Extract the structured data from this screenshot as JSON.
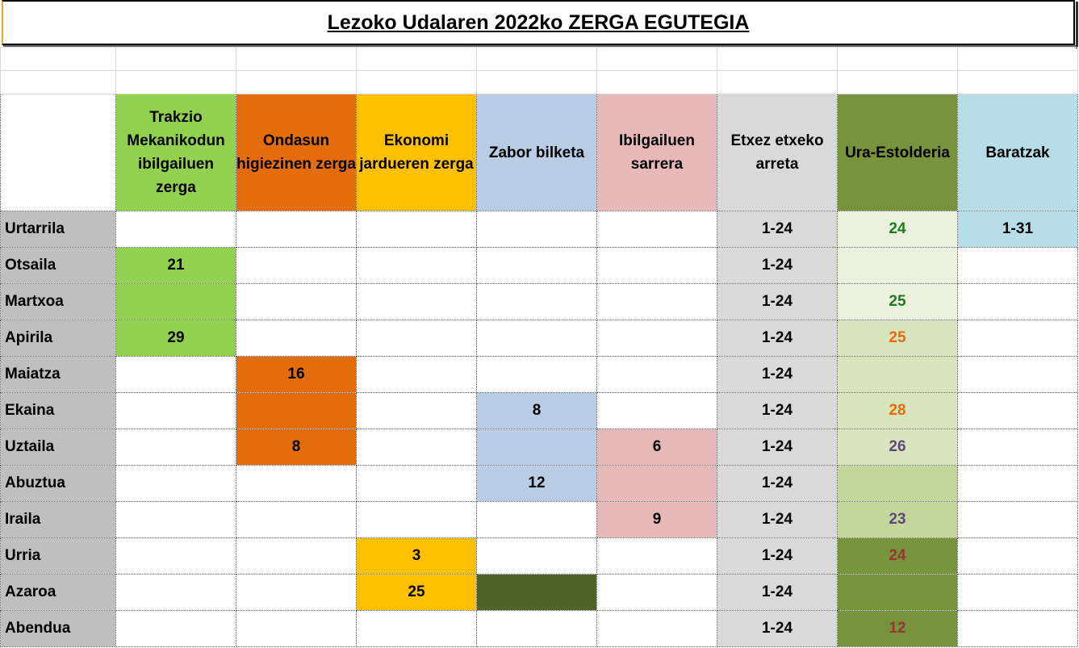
{
  "title": "Lezoko Udalaren 2022ko  ZERGA EGUTEGIA",
  "headers": [
    {
      "label": "Trakzio Mekanikodun ibilgailuen zerga",
      "bg": "#92d050"
    },
    {
      "label": "Ondasun higiezinen zerga",
      "bg": "#e46c0a"
    },
    {
      "label": "Ekonomi jardueren zerga",
      "bg": "#ffc000"
    },
    {
      "label": "Zabor bilketa",
      "bg": "#b8cce4"
    },
    {
      "label": "Ibilgailuen sarrera",
      "bg": "#e6b9b8"
    },
    {
      "label": "Etxez etxeko arreta",
      "bg": "#d9d9d9"
    },
    {
      "label": "Ura-Estolderia",
      "bg": "#77933c"
    },
    {
      "label": "Baratzak",
      "bg": "#b7dee8"
    }
  ],
  "rows": [
    {
      "month": "Urtarrila",
      "cells": [
        {
          "v": "",
          "bg": "#ffffff"
        },
        {
          "v": "",
          "bg": "#ffffff"
        },
        {
          "v": "",
          "bg": "#ffffff"
        },
        {
          "v": "",
          "bg": "#ffffff"
        },
        {
          "v": "",
          "bg": "#ffffff"
        },
        {
          "v": "1-24",
          "bg": "#d9d9d9"
        },
        {
          "v": "24",
          "bg": "#ebf1de",
          "color": "#1e7a1e"
        },
        {
          "v": "1-31",
          "bg": "#b7dee8"
        }
      ]
    },
    {
      "month": "Otsaila",
      "cells": [
        {
          "v": "21",
          "bg": "#92d050"
        },
        {
          "v": "",
          "bg": "#ffffff"
        },
        {
          "v": "",
          "bg": "#ffffff"
        },
        {
          "v": "",
          "bg": "#ffffff"
        },
        {
          "v": "",
          "bg": "#ffffff"
        },
        {
          "v": "1-24",
          "bg": "#d9d9d9"
        },
        {
          "v": "",
          "bg": "#ebf1de"
        },
        {
          "v": "",
          "bg": "#ffffff"
        }
      ]
    },
    {
      "month": "Martxoa",
      "cells": [
        {
          "v": "",
          "bg": "#92d050"
        },
        {
          "v": "",
          "bg": "#ffffff"
        },
        {
          "v": "",
          "bg": "#ffffff"
        },
        {
          "v": "",
          "bg": "#ffffff"
        },
        {
          "v": "",
          "bg": "#ffffff"
        },
        {
          "v": "1-24",
          "bg": "#d9d9d9"
        },
        {
          "v": "25",
          "bg": "#ebf1de",
          "color": "#1e7a1e"
        },
        {
          "v": "",
          "bg": "#ffffff"
        }
      ]
    },
    {
      "month": "Apirila",
      "cells": [
        {
          "v": "29",
          "bg": "#92d050"
        },
        {
          "v": "",
          "bg": "#ffffff"
        },
        {
          "v": "",
          "bg": "#ffffff"
        },
        {
          "v": "",
          "bg": "#ffffff"
        },
        {
          "v": "",
          "bg": "#ffffff"
        },
        {
          "v": "1-24",
          "bg": "#d9d9d9"
        },
        {
          "v": "25",
          "bg": "#d8e4bc",
          "color": "#e46c0a"
        },
        {
          "v": "",
          "bg": "#ffffff"
        }
      ]
    },
    {
      "month": "Maiatza",
      "cells": [
        {
          "v": "",
          "bg": "#ffffff"
        },
        {
          "v": "16",
          "bg": "#e46c0a"
        },
        {
          "v": "",
          "bg": "#ffffff"
        },
        {
          "v": "",
          "bg": "#ffffff"
        },
        {
          "v": "",
          "bg": "#ffffff"
        },
        {
          "v": "1-24",
          "bg": "#d9d9d9"
        },
        {
          "v": "",
          "bg": "#d8e4bc"
        },
        {
          "v": "",
          "bg": "#ffffff"
        }
      ]
    },
    {
      "month": "Ekaina",
      "cells": [
        {
          "v": "",
          "bg": "#ffffff"
        },
        {
          "v": "",
          "bg": "#e46c0a"
        },
        {
          "v": "",
          "bg": "#ffffff"
        },
        {
          "v": "8",
          "bg": "#b8cce4"
        },
        {
          "v": "",
          "bg": "#ffffff"
        },
        {
          "v": "1-24",
          "bg": "#d9d9d9"
        },
        {
          "v": "28",
          "bg": "#d8e4bc",
          "color": "#e46c0a"
        },
        {
          "v": "",
          "bg": "#ffffff"
        }
      ]
    },
    {
      "month": "Uztaila",
      "cells": [
        {
          "v": "",
          "bg": "#ffffff"
        },
        {
          "v": "8",
          "bg": "#e46c0a"
        },
        {
          "v": "",
          "bg": "#ffffff"
        },
        {
          "v": "",
          "bg": "#b8cce4"
        },
        {
          "v": "6",
          "bg": "#e6b9b8"
        },
        {
          "v": "1-24",
          "bg": "#d9d9d9"
        },
        {
          "v": "26",
          "bg": "#d8e4bc",
          "color": "#60497a"
        },
        {
          "v": "",
          "bg": "#ffffff"
        }
      ]
    },
    {
      "month": "Abuztua",
      "cells": [
        {
          "v": "",
          "bg": "#ffffff"
        },
        {
          "v": "",
          "bg": "#ffffff"
        },
        {
          "v": "",
          "bg": "#ffffff"
        },
        {
          "v": "12",
          "bg": "#b8cce4"
        },
        {
          "v": "",
          "bg": "#e6b9b8"
        },
        {
          "v": "1-24",
          "bg": "#d9d9d9"
        },
        {
          "v": "",
          "bg": "#c4d79b"
        },
        {
          "v": "",
          "bg": "#ffffff"
        }
      ]
    },
    {
      "month": "Iraila",
      "cells": [
        {
          "v": "",
          "bg": "#ffffff"
        },
        {
          "v": "",
          "bg": "#ffffff"
        },
        {
          "v": "",
          "bg": "#ffffff"
        },
        {
          "v": "",
          "bg": "#ffffff"
        },
        {
          "v": "9",
          "bg": "#e6b9b8"
        },
        {
          "v": "1-24",
          "bg": "#d9d9d9"
        },
        {
          "v": "23",
          "bg": "#c4d79b",
          "color": "#60497a"
        },
        {
          "v": "",
          "bg": "#ffffff"
        }
      ]
    },
    {
      "month": "Urria",
      "cells": [
        {
          "v": "",
          "bg": "#ffffff"
        },
        {
          "v": "",
          "bg": "#ffffff"
        },
        {
          "v": "3",
          "bg": "#ffc000"
        },
        {
          "v": "",
          "bg": "#ffffff"
        },
        {
          "v": "",
          "bg": "#ffffff"
        },
        {
          "v": "1-24",
          "bg": "#d9d9d9"
        },
        {
          "v": "24",
          "bg": "#77933c",
          "color": "#953735"
        },
        {
          "v": "",
          "bg": "#ffffff"
        }
      ]
    },
    {
      "month": "Azaroa",
      "cells": [
        {
          "v": "",
          "bg": "#ffffff"
        },
        {
          "v": "",
          "bg": "#ffffff"
        },
        {
          "v": "25",
          "bg": "#ffc000"
        },
        {
          "v": "",
          "bg": "#4f6228"
        },
        {
          "v": "",
          "bg": "#ffffff"
        },
        {
          "v": "1-24",
          "bg": "#d9d9d9"
        },
        {
          "v": "",
          "bg": "#77933c"
        },
        {
          "v": "",
          "bg": "#ffffff"
        }
      ]
    },
    {
      "month": "Abendua",
      "cells": [
        {
          "v": "",
          "bg": "#ffffff"
        },
        {
          "v": "",
          "bg": "#ffffff"
        },
        {
          "v": "",
          "bg": "#ffffff"
        },
        {
          "v": "",
          "bg": "#ffffff"
        },
        {
          "v": "",
          "bg": "#ffffff"
        },
        {
          "v": "1-24",
          "bg": "#d9d9d9"
        },
        {
          "v": "12",
          "bg": "#77933c",
          "color": "#953735"
        },
        {
          "v": "",
          "bg": "#ffffff"
        }
      ]
    }
  ]
}
